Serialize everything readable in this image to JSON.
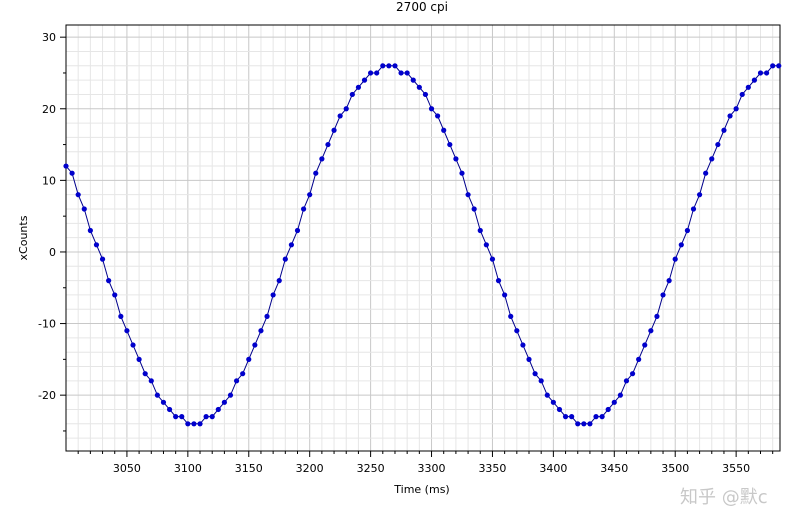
{
  "chart_data": {
    "type": "line",
    "title": "2700 cpi",
    "xlabel": "Time (ms)",
    "ylabel": "xCounts",
    "xlim": [
      3000,
      3586
    ],
    "ylim": [
      -27.8,
      31.7
    ],
    "xticks": [
      3050,
      3100,
      3150,
      3200,
      3250,
      3300,
      3350,
      3400,
      3450,
      3500,
      3550
    ],
    "xtick_labels": [
      "3050",
      "3100",
      "3150",
      "3200",
      "3250",
      "3300",
      "3350",
      "3400",
      "3450",
      "3500",
      "3550"
    ],
    "yticks": [
      30,
      20,
      10,
      0,
      -10,
      -20
    ],
    "ytick_labels": [
      "30",
      "20",
      "10",
      "0",
      "-10",
      "-20"
    ],
    "grid": true,
    "legend": "none",
    "series": [
      {
        "name": "xCounts",
        "color": "#0000cc",
        "x_start": 3000,
        "x_step": 5,
        "values": [
          12,
          11,
          8,
          6,
          3,
          1,
          -1,
          -4,
          -6,
          -9,
          -11,
          -13,
          -15,
          -17,
          -18,
          -20,
          -21,
          -22,
          -23,
          -23,
          -24,
          -24,
          -24,
          -23,
          -23,
          -22,
          -21,
          -20,
          -18,
          -17,
          -15,
          -13,
          -11,
          -9,
          -6,
          -4,
          -1,
          1,
          3,
          6,
          8,
          11,
          13,
          15,
          17,
          19,
          20,
          22,
          23,
          24,
          25,
          25,
          26,
          26,
          26,
          25,
          25,
          24,
          23,
          22,
          20,
          19,
          17,
          15,
          13,
          11,
          8,
          6,
          3,
          1,
          -1,
          -4,
          -6,
          -9,
          -11,
          -13,
          -15,
          -17,
          -18,
          -20,
          -21,
          -22,
          -23,
          -23,
          -24,
          -24,
          -24,
          -23,
          -23,
          -22,
          -21,
          -20,
          -18,
          -17,
          -15,
          -13,
          -11,
          -9,
          -6,
          -4,
          -1,
          1,
          3,
          6,
          8,
          11,
          13,
          15,
          17,
          19,
          20,
          22,
          23,
          24,
          25,
          25,
          26,
          26
        ]
      }
    ]
  },
  "watermark": "知乎 @默c"
}
